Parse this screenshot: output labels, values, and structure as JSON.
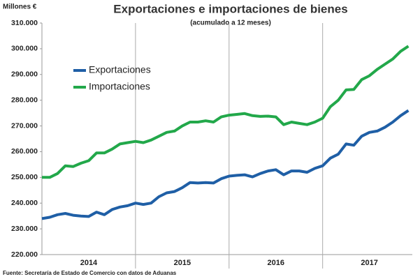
{
  "chart_data": {
    "type": "line",
    "title": "Exportaciones e importaciones de bienes",
    "subtitle": "(acumulado  a 12 meses)",
    "y_label": "Millones €",
    "source": "Fuente: Secretaría de Estado de Comercio con datos de Aduanas",
    "x": [
      0,
      1,
      2,
      3,
      4,
      5,
      6,
      7,
      8,
      9,
      10,
      11,
      12,
      13,
      14,
      15,
      16,
      17,
      18,
      19,
      20,
      21,
      22,
      23,
      24,
      25,
      26,
      27,
      28,
      29,
      30,
      31,
      32,
      33,
      34,
      35,
      36,
      37,
      38,
      39,
      40,
      41,
      42,
      43,
      44,
      45,
      46,
      47
    ],
    "xlim": [
      0,
      47.5
    ],
    "xticks": [
      {
        "value": 6,
        "label": "2014"
      },
      {
        "value": 18,
        "label": "2015"
      },
      {
        "value": 30,
        "label": "2016"
      },
      {
        "value": 42,
        "label": "2017"
      }
    ],
    "x_separators": [
      12,
      24,
      36
    ],
    "ylim": [
      220000,
      310000
    ],
    "yticks": [
      {
        "value": 220000,
        "label": "220.000"
      },
      {
        "value": 230000,
        "label": "230.000"
      },
      {
        "value": 240000,
        "label": "240.000"
      },
      {
        "value": 250000,
        "label": "250.000"
      },
      {
        "value": 260000,
        "label": "260.000"
      },
      {
        "value": 270000,
        "label": "270.000"
      },
      {
        "value": 280000,
        "label": "280.000"
      },
      {
        "value": 290000,
        "label": "290.000"
      },
      {
        "value": 300000,
        "label": "300.000"
      },
      {
        "value": 310000,
        "label": "310.000"
      }
    ],
    "legend": "upper-left",
    "series": [
      {
        "name": "Exportaciones",
        "color": "#1f5fa6",
        "values": [
          234000,
          234500,
          235500,
          236000,
          235300,
          235000,
          234800,
          236500,
          235500,
          237500,
          238500,
          239000,
          240000,
          239500,
          240000,
          242500,
          244000,
          244500,
          246000,
          248000,
          247800,
          248000,
          247800,
          249500,
          250500,
          250800,
          251000,
          250200,
          251500,
          252500,
          253000,
          251000,
          252500,
          252500,
          252000,
          253500,
          254500,
          257500,
          259000,
          263000,
          262500,
          266000,
          267500,
          268000,
          269500,
          271500,
          274000,
          276000
        ]
      },
      {
        "name": "Importaciones",
        "color": "#22a84a",
        "values": [
          250000,
          250000,
          251500,
          254500,
          254200,
          255500,
          256500,
          259500,
          259500,
          261000,
          263000,
          263500,
          264000,
          263500,
          264500,
          266000,
          267500,
          268000,
          270000,
          271500,
          271500,
          272000,
          271500,
          273500,
          274200,
          274500,
          274800,
          274000,
          273700,
          273800,
          273500,
          270500,
          271500,
          271000,
          270500,
          271500,
          273000,
          277500,
          280000,
          284000,
          284200,
          288000,
          289500,
          292000,
          294000,
          296000,
          299000,
          301000
        ]
      }
    ]
  }
}
